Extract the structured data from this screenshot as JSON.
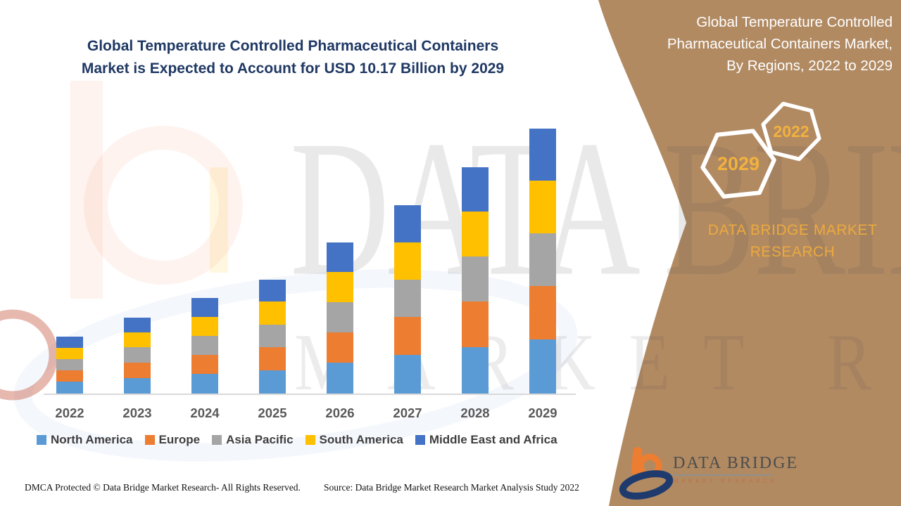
{
  "chart": {
    "title_lines": [
      "Global Temperature Controlled Pharmaceutical Containers",
      "Market is Expected to Account for USD 10.17 Billion by 2029"
    ]
  },
  "chart_data": {
    "type": "bar",
    "stacked": true,
    "title": "Global Temperature Controlled Pharmaceutical Containers Market is Expected to Account for USD 10.17 Billion by 2029",
    "unit": "USD Billion",
    "categories": [
      "2022",
      "2023",
      "2024",
      "2025",
      "2026",
      "2027",
      "2028",
      "2029"
    ],
    "series": [
      {
        "name": "North America",
        "color": "#5B9BD5",
        "values": [
          0.45,
          0.6,
          0.75,
          0.9,
          1.19,
          1.48,
          1.78,
          2.08
        ]
      },
      {
        "name": "Europe",
        "color": "#ED7D31",
        "values": [
          0.44,
          0.59,
          0.74,
          0.88,
          1.17,
          1.46,
          1.75,
          2.05
        ]
      },
      {
        "name": "Asia Pacific",
        "color": "#A5A5A5",
        "values": [
          0.43,
          0.58,
          0.72,
          0.87,
          1.15,
          1.43,
          1.72,
          2.01
        ]
      },
      {
        "name": "South America",
        "color": "#FFC000",
        "values": [
          0.43,
          0.58,
          0.73,
          0.87,
          1.16,
          1.44,
          1.73,
          2.03
        ]
      },
      {
        "name": "Middle East and Africa",
        "color": "#4472C4",
        "values": [
          0.43,
          0.57,
          0.72,
          0.86,
          1.14,
          1.42,
          1.71,
          2.0
        ]
      }
    ],
    "totals": [
      2.18,
      2.92,
      3.66,
      4.38,
      5.81,
      7.23,
      8.69,
      10.17
    ],
    "stated_2029_total": "USD 10.17 Billion",
    "ylim": [
      0,
      10.5
    ],
    "gridlines": false,
    "y_axis_visible": false,
    "legend_position": "bottom"
  },
  "panel": {
    "title_lines": [
      "Global Temperature Controlled",
      "Pharmaceutical Containers Market,",
      "By Regions, 2022 to 2029"
    ],
    "hexagons": {
      "back_year": "2029",
      "front_year": "2022"
    },
    "brand_lines": [
      "DATA BRIDGE MARKET",
      "RESEARCH"
    ],
    "logo": {
      "name": "DATA BRIDGE",
      "subtext": "MARKET RESEARCH"
    }
  },
  "watermark": {
    "line1": "DATA BRIDGE",
    "line2": "MARKET RESEARCH"
  },
  "footer": {
    "left": "DMCA Protected © Data Bridge Market Research- All Rights Reserved.",
    "right": "Source: Data Bridge Market Research Market Analysis Study 2022"
  },
  "colors": {
    "panel_brown": "#B18A62",
    "accent_gold": "#ECA93E",
    "hex_year_gold": "#F2B13E",
    "title_navy": "#1F3864",
    "axis_label_gray": "#595959",
    "baseline_gray": "#D9D9D9",
    "logo_orange": "#ED7D31",
    "logo_navy": "#1F3B6E"
  }
}
